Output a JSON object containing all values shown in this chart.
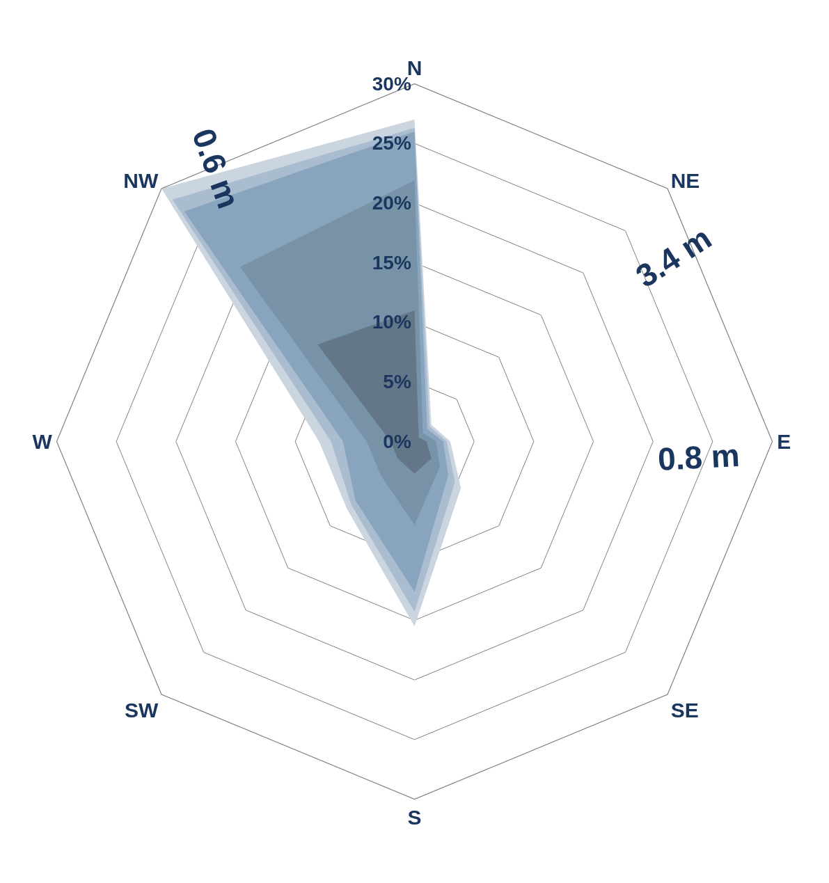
{
  "chart_data": {
    "type": "radar",
    "categories": [
      "N",
      "NE",
      "E",
      "SE",
      "S",
      "SW",
      "W",
      "NW"
    ],
    "series": [
      {
        "color": "#cbd5e0",
        "values": [
          27,
          2,
          3,
          5.5,
          15.5,
          8,
          8,
          30
        ]
      },
      {
        "color": "#aabdd0",
        "values": [
          26.3,
          1.8,
          2.7,
          4.8,
          14.3,
          7.5,
          7,
          28.7
        ]
      },
      {
        "color": "#89a5bd",
        "values": [
          26,
          1.5,
          2.4,
          4,
          12.6,
          7,
          6,
          27.3
        ]
      },
      {
        "color": "#7893a8",
        "values": [
          21.9,
          1,
          1.8,
          3,
          7,
          4,
          4,
          20.7
        ]
      },
      {
        "color": "#637789",
        "values": [
          11,
          0.5,
          1,
          2,
          2.7,
          2,
          2,
          11.5
        ]
      }
    ],
    "ylim": [
      0,
      30
    ],
    "yticks": [
      {
        "value": 0,
        "label": "0%"
      },
      {
        "value": 5,
        "label": "5%"
      },
      {
        "value": 10,
        "label": "10%"
      },
      {
        "value": 15,
        "label": "15%"
      },
      {
        "value": 20,
        "label": "20%"
      },
      {
        "value": 25,
        "label": "25%"
      },
      {
        "value": 30,
        "label": "30%"
      }
    ],
    "grid": true,
    "annotations": [
      "0.6 m",
      "3.4 m",
      "0.8 m"
    ]
  }
}
